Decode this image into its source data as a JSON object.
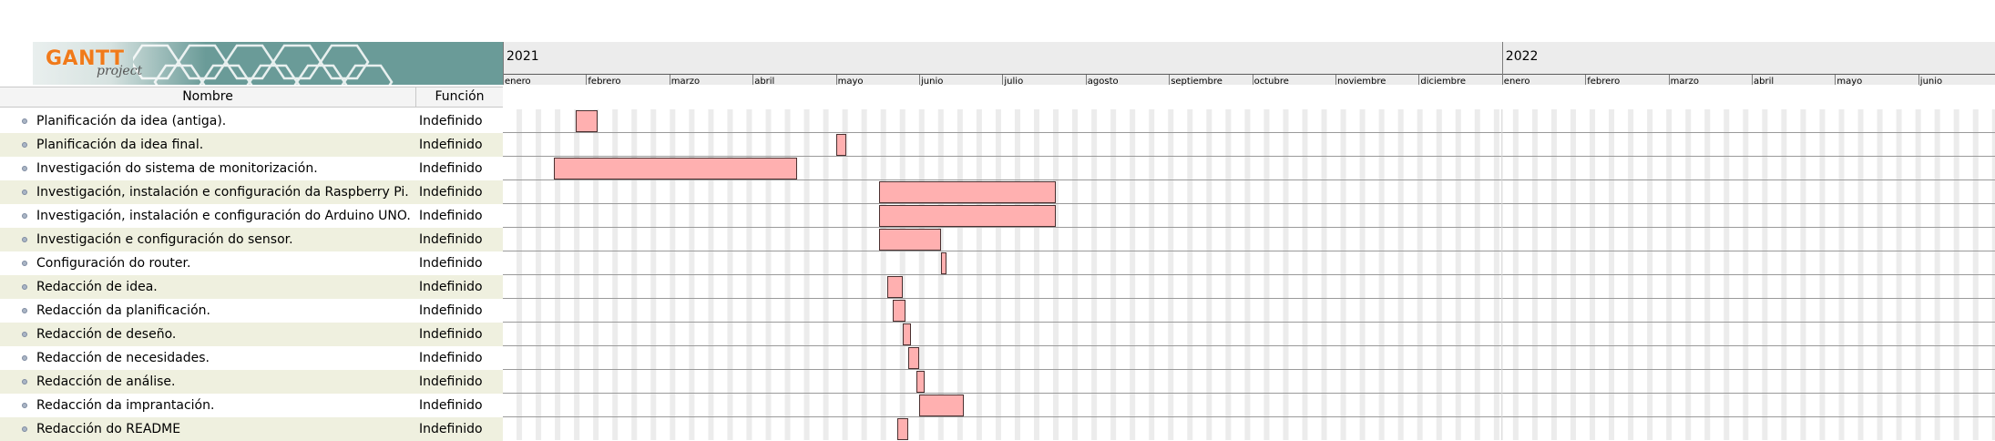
{
  "logo": {
    "word": "GANTT",
    "sub": "project"
  },
  "table": {
    "name_header": "Nombre",
    "role_header": "Función"
  },
  "timeline": {
    "years": [
      {
        "label": "2021",
        "month_index": 0
      },
      {
        "label": "2022",
        "month_index": 12
      }
    ],
    "months": [
      "enero",
      "febrero",
      "marzo",
      "abril",
      "mayo",
      "junio",
      "julio",
      "agosto",
      "septiembre",
      "octubre",
      "noviembre",
      "diciembre",
      "enero",
      "febrero",
      "marzo",
      "abril",
      "mayo",
      "junio"
    ],
    "start_date": "2021-01-01"
  },
  "colors": {
    "bar_fill": "#ffb0b0",
    "bar_border": "#4a3030",
    "row_alt": "#eff0df",
    "logo_bg": "#6a9b98",
    "logo_text": "#f07a1a"
  },
  "tasks": [
    {
      "name": "Planificación da idea (antiga).",
      "role": "Indefinido",
      "start": "2021-01-28",
      "end": "2021-02-05"
    },
    {
      "name": "Planificación da idea final.",
      "role": "Indefinido",
      "start": "2021-05-01",
      "end": "2021-05-05"
    },
    {
      "name": "Investigación do sistema de monitorización.",
      "role": "Indefinido",
      "start": "2021-01-20",
      "end": "2021-04-17"
    },
    {
      "name": "Investigación, instalación e configuración da Raspberry Pi.",
      "role": "Indefinido",
      "start": "2021-05-17",
      "end": "2021-07-21"
    },
    {
      "name": "Investigación, instalación e configuración do Arduino UNO.",
      "role": "Indefinido",
      "start": "2021-05-17",
      "end": "2021-07-21"
    },
    {
      "name": "Investigación e configuración do sensor.",
      "role": "Indefinido",
      "start": "2021-05-17",
      "end": "2021-06-09"
    },
    {
      "name": "Configuración do router.",
      "role": "Indefinido",
      "start": "2021-06-09",
      "end": "2021-06-11"
    },
    {
      "name": "Redacción de idea.",
      "role": "Indefinido",
      "start": "2021-05-20",
      "end": "2021-05-26"
    },
    {
      "name": "Redacción da planificación.",
      "role": "Indefinido",
      "start": "2021-05-22",
      "end": "2021-05-27"
    },
    {
      "name": "Redacción de deseño.",
      "role": "Indefinido",
      "start": "2021-05-26",
      "end": "2021-05-29"
    },
    {
      "name": "Redacción de necesidades.",
      "role": "Indefinido",
      "start": "2021-05-28",
      "end": "2021-06-01"
    },
    {
      "name": "Redacción de análise.",
      "role": "Indefinido",
      "start": "2021-05-31",
      "end": "2021-06-03"
    },
    {
      "name": "Redacción da imprantación.",
      "role": "Indefinido",
      "start": "2021-06-01",
      "end": "2021-06-17"
    },
    {
      "name": "Redacción do README",
      "role": "Indefinido",
      "start": "2021-05-24",
      "end": "2021-05-28"
    }
  ]
}
